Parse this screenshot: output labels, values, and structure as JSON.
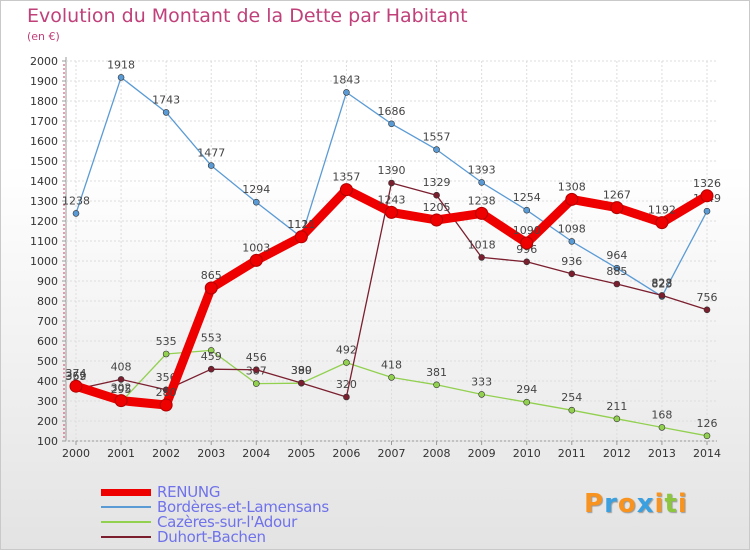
{
  "title": "Evolution du Montant de la Dette par Habitant",
  "subtitle": "(en €)",
  "logo": {
    "text": "Proxiti",
    "colors": [
      "#f7931e",
      "#3aa0e0",
      "#f7931e",
      "#3aa0e0",
      "#f7931e",
      "#8cc63f",
      "#f7931e"
    ]
  },
  "chart_data": {
    "type": "line",
    "x": [
      "2000",
      "2001",
      "2002",
      "2003",
      "2004",
      "2005",
      "2006",
      "2007",
      "2008",
      "2009",
      "2010",
      "2011",
      "2012",
      "2013",
      "2014"
    ],
    "ylim": [
      100,
      2000
    ],
    "yticks": [
      "100",
      "200",
      "300",
      "400",
      "500",
      "600",
      "700",
      "800",
      "900",
      "1000",
      "1100",
      "1200",
      "1300",
      "1400",
      "1500",
      "1600",
      "1700",
      "1800",
      "1900",
      "2000"
    ],
    "grid": true,
    "legend_position": "bottom-left",
    "series": [
      {
        "name": "Bordères-et-Lamensans",
        "color": "#5b9bd5",
        "values": [
          1238,
          1918,
          1743,
          1477,
          1294,
          1119,
          1843,
          1686,
          1557,
          1393,
          1254,
          1098,
          964,
          823,
          1249
        ]
      },
      {
        "name": "Cazères-sur-l'Adour",
        "color": "#92d050",
        "values": [
          362,
          295,
          535,
          553,
          387,
          389,
          492,
          418,
          381,
          333,
          294,
          254,
          211,
          168,
          126
        ]
      },
      {
        "name": "Duhort-Bachen",
        "color": "#7b1f2f",
        "values": [
          359,
          408,
          356,
          459,
          456,
          390,
          320,
          1390,
          1329,
          1018,
          996,
          936,
          885,
          828,
          756
        ]
      },
      {
        "name": "RENUNG",
        "color": "#ee0000",
        "values": [
          374,
          302,
          280,
          865,
          1003,
          1121,
          1357,
          1243,
          1205,
          1238,
          1090,
          1308,
          1267,
          1192,
          1326
        ]
      }
    ]
  },
  "legend": [
    {
      "label": "RENUNG",
      "color": "#ee0000"
    },
    {
      "label": "Bordères-et-Lamensans",
      "color": "#5b9bd5"
    },
    {
      "label": "Cazères-sur-l'Adour",
      "color": "#92d050"
    },
    {
      "label": "Duhort-Bachen",
      "color": "#7b1f2f"
    }
  ]
}
